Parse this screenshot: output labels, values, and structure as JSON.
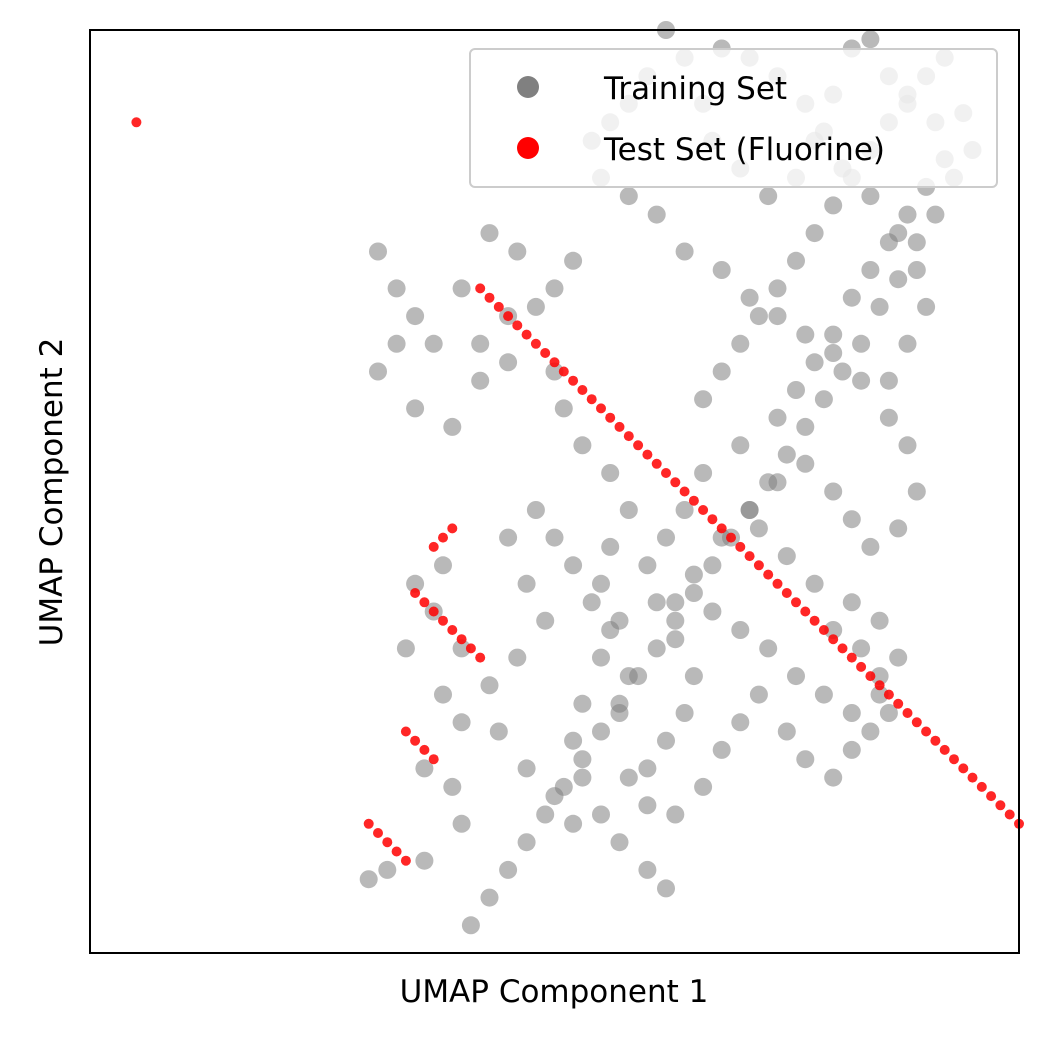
{
  "chart_data": {
    "type": "scatter",
    "xlabel": "UMAP Component 1",
    "ylabel": "UMAP Component 2",
    "xlim": [
      0,
      100
    ],
    "ylim": [
      0,
      100
    ],
    "xticks": [],
    "yticks": [],
    "grid": false,
    "legend_position": "top-right",
    "series": [
      {
        "name": "Training Set",
        "color": "#808080",
        "points": [
          [
            34,
            33
          ],
          [
            35,
            40
          ],
          [
            37,
            37
          ],
          [
            38,
            42
          ],
          [
            40,
            33
          ],
          [
            38,
            28
          ],
          [
            40,
            25
          ],
          [
            36,
            20
          ],
          [
            39,
            18
          ],
          [
            40,
            14
          ],
          [
            36,
            10
          ],
          [
            32,
            9
          ],
          [
            30,
            8
          ],
          [
            31,
            76
          ],
          [
            33,
            72
          ],
          [
            35,
            69
          ],
          [
            33,
            66
          ],
          [
            31,
            63
          ],
          [
            35,
            59
          ],
          [
            39,
            57
          ],
          [
            42,
            62
          ],
          [
            45,
            64
          ],
          [
            42,
            66
          ],
          [
            45,
            69
          ],
          [
            48,
            70
          ],
          [
            50,
            63
          ],
          [
            51,
            59
          ],
          [
            53,
            55
          ],
          [
            56,
            52
          ],
          [
            58,
            48
          ],
          [
            56,
            44
          ],
          [
            55,
            40
          ],
          [
            57,
            36
          ],
          [
            55,
            32
          ],
          [
            53,
            27
          ],
          [
            52,
            23
          ],
          [
            53,
            19
          ],
          [
            55,
            15
          ],
          [
            57,
            12
          ],
          [
            60,
            9
          ],
          [
            62,
            7
          ],
          [
            60,
            20
          ],
          [
            62,
            23
          ],
          [
            64,
            26
          ],
          [
            65,
            30
          ],
          [
            63,
            34
          ],
          [
            61,
            38
          ],
          [
            60,
            42
          ],
          [
            62,
            45
          ],
          [
            64,
            48
          ],
          [
            66,
            52
          ],
          [
            70,
            55
          ],
          [
            74,
            58
          ],
          [
            76,
            61
          ],
          [
            78,
            64
          ],
          [
            80,
            67
          ],
          [
            82,
            71
          ],
          [
            84,
            74
          ],
          [
            86,
            77
          ],
          [
            88,
            80
          ],
          [
            90,
            83
          ],
          [
            92,
            86
          ],
          [
            91,
            90
          ],
          [
            88,
            92
          ],
          [
            86,
            95
          ],
          [
            84,
            99
          ],
          [
            82,
            98
          ],
          [
            80,
            93
          ],
          [
            78,
            88
          ],
          [
            76,
            84
          ],
          [
            73,
            82
          ],
          [
            70,
            85
          ],
          [
            67,
            88
          ],
          [
            66,
            92
          ],
          [
            64,
            97
          ],
          [
            62,
            100
          ],
          [
            60,
            95
          ],
          [
            58,
            92
          ],
          [
            56,
            90
          ],
          [
            54,
            88
          ],
          [
            55,
            84
          ],
          [
            58,
            82
          ],
          [
            61,
            80
          ],
          [
            64,
            76
          ],
          [
            68,
            74
          ],
          [
            71,
            71
          ],
          [
            74,
            69
          ],
          [
            77,
            67
          ],
          [
            80,
            65
          ],
          [
            83,
            62
          ],
          [
            86,
            58
          ],
          [
            88,
            55
          ],
          [
            89,
            50
          ],
          [
            87,
            46
          ],
          [
            84,
            44
          ],
          [
            82,
            47
          ],
          [
            80,
            50
          ],
          [
            77,
            53
          ],
          [
            74,
            51
          ],
          [
            71,
            48
          ],
          [
            68,
            45
          ],
          [
            65,
            41
          ],
          [
            63,
            38
          ],
          [
            67,
            37
          ],
          [
            70,
            35
          ],
          [
            73,
            33
          ],
          [
            76,
            30
          ],
          [
            79,
            28
          ],
          [
            82,
            26
          ],
          [
            85,
            28
          ],
          [
            87,
            32
          ],
          [
            85,
            36
          ],
          [
            82,
            38
          ],
          [
            78,
            40
          ],
          [
            75,
            43
          ],
          [
            72,
            46
          ],
          [
            86,
            62
          ],
          [
            88,
            66
          ],
          [
            90,
            70
          ],
          [
            89,
            74
          ],
          [
            87,
            78
          ],
          [
            84,
            82
          ],
          [
            81,
            85
          ],
          [
            79,
            89
          ],
          [
            77,
            92
          ],
          [
            74,
            95
          ],
          [
            71,
            97
          ],
          [
            68,
            98
          ],
          [
            50,
            72
          ],
          [
            52,
            75
          ],
          [
            46,
            76
          ],
          [
            43,
            78
          ],
          [
            40,
            72
          ],
          [
            37,
            66
          ],
          [
            48,
            48
          ],
          [
            50,
            45
          ],
          [
            52,
            42
          ],
          [
            54,
            38
          ],
          [
            56,
            35
          ],
          [
            58,
            30
          ],
          [
            57,
            26
          ],
          [
            45,
            45
          ],
          [
            47,
            40
          ],
          [
            49,
            36
          ],
          [
            46,
            32
          ],
          [
            43,
            29
          ],
          [
            44,
            24
          ],
          [
            47,
            20
          ],
          [
            50,
            17
          ],
          [
            52,
            14
          ],
          [
            58,
            19
          ],
          [
            60,
            16
          ],
          [
            63,
            15
          ],
          [
            66,
            18
          ],
          [
            68,
            22
          ],
          [
            70,
            25
          ],
          [
            72,
            28
          ],
          [
            75,
            24
          ],
          [
            77,
            21
          ],
          [
            80,
            19
          ],
          [
            82,
            22
          ],
          [
            84,
            24
          ],
          [
            86,
            26
          ],
          [
            85,
            30
          ],
          [
            83,
            33
          ],
          [
            80,
            35
          ],
          [
            66,
            60
          ],
          [
            68,
            63
          ],
          [
            70,
            66
          ],
          [
            72,
            69
          ],
          [
            74,
            72
          ],
          [
            76,
            75
          ],
          [
            78,
            78
          ],
          [
            80,
            81
          ],
          [
            82,
            84
          ],
          [
            84,
            87
          ],
          [
            86,
            90
          ],
          [
            88,
            93
          ],
          [
            90,
            95
          ],
          [
            92,
            97
          ],
          [
            94,
            91
          ],
          [
            95,
            87
          ],
          [
            93,
            84
          ],
          [
            91,
            80
          ],
          [
            89,
            77
          ],
          [
            87,
            73
          ],
          [
            85,
            70
          ],
          [
            83,
            66
          ],
          [
            81,
            63
          ],
          [
            79,
            60
          ],
          [
            77,
            57
          ],
          [
            75,
            54
          ],
          [
            73,
            51
          ],
          [
            71,
            48
          ],
          [
            69,
            45
          ],
          [
            67,
            42
          ],
          [
            65,
            39
          ],
          [
            63,
            36
          ],
          [
            61,
            33
          ],
          [
            59,
            30
          ],
          [
            57,
            27
          ],
          [
            55,
            24
          ],
          [
            53,
            21
          ],
          [
            51,
            18
          ],
          [
            49,
            15
          ],
          [
            47,
            12
          ],
          [
            45,
            9
          ],
          [
            43,
            6
          ],
          [
            41,
            3
          ]
        ]
      },
      {
        "name": "Test Set (Fluorine)",
        "color": "#ff0000",
        "points": [
          [
            5,
            90
          ],
          [
            37,
            44
          ],
          [
            38,
            45
          ],
          [
            39,
            46
          ],
          [
            35,
            39
          ],
          [
            36,
            38
          ],
          [
            37,
            37
          ],
          [
            38,
            36
          ],
          [
            39,
            35
          ],
          [
            40,
            34
          ],
          [
            41,
            33
          ],
          [
            42,
            32
          ],
          [
            34,
            24
          ],
          [
            35,
            23
          ],
          [
            36,
            22
          ],
          [
            37,
            21
          ],
          [
            30,
            14
          ],
          [
            31,
            13
          ],
          [
            32,
            12
          ],
          [
            33,
            11
          ],
          [
            34,
            10
          ],
          [
            42,
            72
          ],
          [
            43,
            71
          ],
          [
            44,
            70
          ],
          [
            45,
            69
          ],
          [
            46,
            68
          ],
          [
            47,
            67
          ],
          [
            48,
            66
          ],
          [
            49,
            65
          ],
          [
            50,
            64
          ],
          [
            51,
            63
          ],
          [
            52,
            62
          ],
          [
            53,
            61
          ],
          [
            54,
            60
          ],
          [
            55,
            59
          ],
          [
            56,
            58
          ],
          [
            57,
            57
          ],
          [
            58,
            56
          ],
          [
            59,
            55
          ],
          [
            60,
            54
          ],
          [
            61,
            53
          ],
          [
            62,
            52
          ],
          [
            63,
            51
          ],
          [
            64,
            50
          ],
          [
            65,
            49
          ],
          [
            66,
            48
          ],
          [
            67,
            47
          ],
          [
            68,
            46
          ],
          [
            69,
            45
          ],
          [
            70,
            44
          ],
          [
            71,
            43
          ],
          [
            72,
            42
          ],
          [
            73,
            41
          ],
          [
            74,
            40
          ],
          [
            75,
            39
          ],
          [
            76,
            38
          ],
          [
            77,
            37
          ],
          [
            78,
            36
          ],
          [
            79,
            35
          ],
          [
            80,
            34
          ],
          [
            81,
            33
          ],
          [
            82,
            32
          ],
          [
            83,
            31
          ],
          [
            84,
            30
          ],
          [
            85,
            29
          ],
          [
            86,
            28
          ],
          [
            87,
            27
          ],
          [
            88,
            26
          ],
          [
            89,
            25
          ],
          [
            90,
            24
          ],
          [
            91,
            23
          ],
          [
            92,
            22
          ],
          [
            93,
            21
          ],
          [
            94,
            20
          ],
          [
            95,
            19
          ],
          [
            96,
            18
          ],
          [
            97,
            17
          ],
          [
            98,
            16
          ],
          [
            99,
            15
          ],
          [
            100,
            14
          ]
        ]
      }
    ]
  }
}
